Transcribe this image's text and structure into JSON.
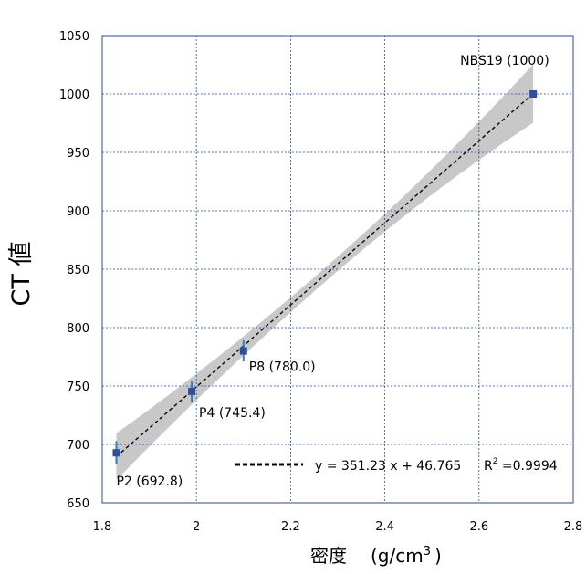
{
  "chart_data": {
    "type": "scatter",
    "xlabel": "密度",
    "xlabel_unit_pre": "(g/cm",
    "xlabel_unit_sup": "3",
    "xlabel_unit_post": ")",
    "ylabel": "CT 値",
    "xlim": [
      1.8,
      2.8
    ],
    "ylim": [
      650,
      1050
    ],
    "xticks": [
      "1.8",
      "2",
      "2.2",
      "2.4",
      "2.6",
      "2.8"
    ],
    "yticks": [
      "650",
      "700",
      "750",
      "800",
      "850",
      "900",
      "950",
      "1000",
      "1050"
    ],
    "grid": true,
    "series": [
      {
        "points": [
          {
            "label": "P2 (692.8)",
            "x": 1.83,
            "y": 692.8,
            "yerr": 10
          },
          {
            "label": "P4 (745.4)",
            "x": 1.99,
            "y": 745.4,
            "yerr": 9
          },
          {
            "label": "P8 (780.0)",
            "x": 2.1,
            "y": 780.0,
            "yerr": 9
          },
          {
            "label": "NBS19 (1000)",
            "x": 2.715,
            "y": 1000,
            "yerr": 0
          }
        ],
        "color": "#2e4f9c",
        "errorbar_color": "#2f7fc1"
      }
    ],
    "fit": {
      "slope": 351.23,
      "intercept": 46.765,
      "r2": 0.9994,
      "x_range": [
        1.83,
        2.715
      ],
      "line_style": "dashed",
      "band_color": "#c8c8c8",
      "band_halfwidth_start": 20,
      "band_halfwidth_mid": 6,
      "band_halfwidth_end": 25
    },
    "legend": {
      "equation": "y = 351.23 x  + 46.765",
      "r2_text": "R",
      "r2_sup": "2",
      "r2_value": " =0.9994",
      "position": "bottom-right"
    }
  }
}
